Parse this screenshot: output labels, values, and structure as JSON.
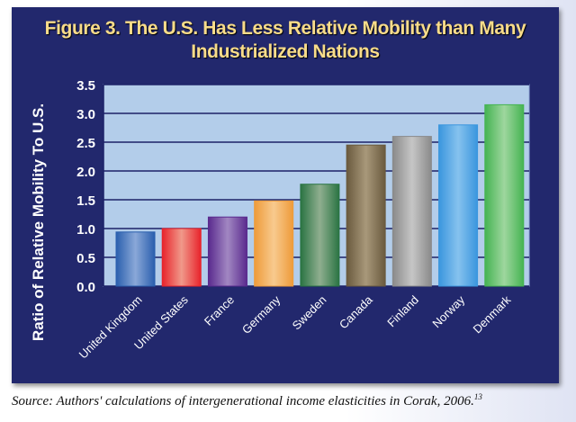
{
  "chart_data": {
    "type": "bar",
    "title": "Figure 3. The U.S. Has Less Relative Mobility than Many Industrialized Nations",
    "title_lines": [
      "Figure 3. The U.S. Has Less Relative Mobility than Many",
      "Industrialized Nations"
    ],
    "xlabel": "",
    "ylabel": "Ratio of Relative Mobility To U.S.",
    "ylim": [
      0,
      3.5
    ],
    "yticks": [
      "0.0",
      "0.5",
      "1.0",
      "1.5",
      "2.0",
      "2.5",
      "3.0",
      "3.5"
    ],
    "grid": true,
    "categories": [
      "United Kingdom",
      "United States",
      "France",
      "Germany",
      "Sweden",
      "Canada",
      "Finland",
      "Norway",
      "Denmark"
    ],
    "values": [
      0.94,
      1.0,
      1.2,
      1.48,
      1.77,
      2.45,
      2.6,
      2.8,
      3.15
    ],
    "colors": [
      {
        "edge": "#2a5fae",
        "mid": "#8aa8d8"
      },
      {
        "edge": "#e8232b",
        "mid": "#f0998a"
      },
      {
        "edge": "#5a2a8e",
        "mid": "#a187c2"
      },
      {
        "edge": "#ee9b3a",
        "mid": "#f8ca8e"
      },
      {
        "edge": "#2a7443",
        "mid": "#8fae8f"
      },
      {
        "edge": "#6a5a3e",
        "mid": "#a8987a"
      },
      {
        "edge": "#8a8a8a",
        "mid": "#c6c6c6"
      },
      {
        "edge": "#3a96de",
        "mid": "#86c2ee"
      },
      {
        "edge": "#45b452",
        "mid": "#9ed69e"
      }
    ],
    "plot_background": "#b3cdea",
    "panel_background": "#22286d",
    "title_color": "#f8dc8a"
  },
  "source": {
    "text": "Source: Authors' calculations of intergenerational income elasticities in Corak, 2006.",
    "footnote": "13"
  }
}
